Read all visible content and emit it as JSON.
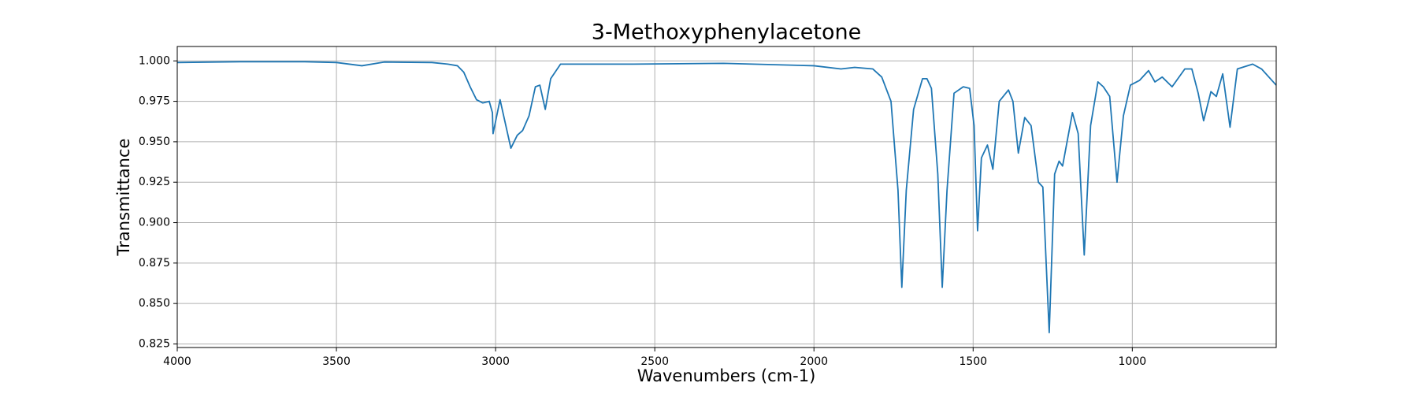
{
  "chart_data": {
    "type": "line",
    "title": "3-Methoxyphenylacetone",
    "xlabel": "Wavenumbers (cm-1)",
    "ylabel": "Transmittance",
    "x": [
      4000,
      3800,
      3600,
      3500,
      3420,
      3350,
      3200,
      3150,
      3120,
      3100,
      3080,
      3060,
      3040,
      3020,
      3010,
      3008,
      2986,
      2952,
      2932,
      2915,
      2895,
      2875,
      2861,
      2844,
      2827,
      2796,
      2568,
      2284,
      2000,
      1915,
      1872,
      1815,
      1787,
      1758,
      1736,
      1724,
      1710,
      1687,
      1659,
      1645,
      1631,
      1611,
      1597,
      1582,
      1560,
      1531,
      1511,
      1497,
      1486,
      1474,
      1455,
      1438,
      1418,
      1389,
      1375,
      1358,
      1338,
      1318,
      1295,
      1281,
      1261,
      1244,
      1230,
      1219,
      1188,
      1170,
      1151,
      1131,
      1108,
      1091,
      1071,
      1048,
      1028,
      1006,
      977,
      949,
      929,
      906,
      875,
      835,
      813,
      793,
      776,
      753,
      736,
      716,
      693,
      670,
      622,
      594,
      548
    ],
    "series": [
      {
        "name": "3-Methoxyphenylacetone",
        "color": "#1f77b4",
        "values": [
          0.999,
          0.9995,
          0.9995,
          0.999,
          0.997,
          0.9993,
          0.999,
          0.998,
          0.997,
          0.993,
          0.984,
          0.976,
          0.974,
          0.975,
          0.968,
          0.955,
          0.976,
          0.946,
          0.954,
          0.957,
          0.966,
          0.984,
          0.985,
          0.97,
          0.989,
          0.998,
          0.998,
          0.9985,
          0.997,
          0.995,
          0.996,
          0.995,
          0.99,
          0.975,
          0.92,
          0.86,
          0.92,
          0.97,
          0.989,
          0.989,
          0.983,
          0.93,
          0.86,
          0.92,
          0.98,
          0.984,
          0.983,
          0.96,
          0.895,
          0.94,
          0.948,
          0.933,
          0.975,
          0.982,
          0.975,
          0.943,
          0.965,
          0.96,
          0.925,
          0.922,
          0.832,
          0.93,
          0.938,
          0.935,
          0.968,
          0.955,
          0.88,
          0.96,
          0.987,
          0.984,
          0.978,
          0.925,
          0.966,
          0.985,
          0.988,
          0.994,
          0.987,
          0.99,
          0.984,
          0.995,
          0.995,
          0.98,
          0.963,
          0.981,
          0.978,
          0.992,
          0.959,
          0.995,
          0.998,
          0.995,
          0.985
        ]
      }
    ],
    "xlim": [
      4000,
      548
    ],
    "ylim": [
      0.8228,
      1.0089
    ],
    "xticks": [
      4000,
      3500,
      3000,
      2500,
      2000,
      1500,
      1000
    ],
    "yticks": [
      0.825,
      {
        "value": 0.85,
        "label": "0.850"
      },
      0.875,
      {
        "value": 0.9,
        "label": "0.900"
      },
      0.925,
      {
        "value": 0.95,
        "label": "0.950"
      },
      0.975,
      {
        "value": 1,
        "label": "1.000"
      }
    ],
    "grid": true
  }
}
